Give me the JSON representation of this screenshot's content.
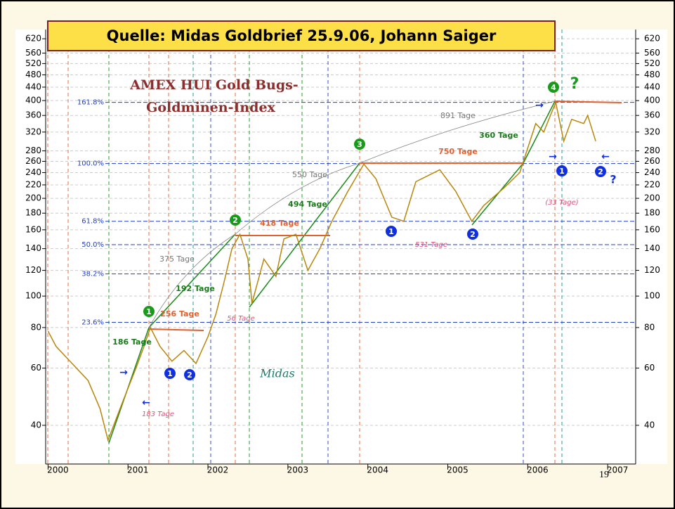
{
  "source": "Quelle: Midas Goldbrief 25.9.06, Johann Saiger",
  "page_number": "19",
  "chart_data": {
    "type": "line",
    "title": [
      "AMEX HUI Gold Bugs-",
      "Goldminen-Index"
    ],
    "watermark": "Midas",
    "log_scale": true,
    "grid": true,
    "xlim": [
      1999.97,
      2007.35
    ],
    "xticks": [
      {
        "value": 2000,
        "label": "2000"
      },
      2001,
      2002,
      2003,
      2004,
      2005,
      2006,
      2007
    ],
    "ylim": [
      30.4,
      662
    ],
    "yticks": [
      40,
      60,
      80,
      100,
      120,
      140,
      160,
      180,
      200,
      220,
      240,
      260,
      280,
      320,
      360,
      400,
      440,
      480,
      520,
      560,
      620
    ],
    "series": [
      {
        "name": "HUI",
        "color": "#b8860b",
        "x": [
          2000.0,
          2000.1,
          2000.3,
          2000.5,
          2000.65,
          2000.75,
          2000.9,
          2001.0,
          2001.1,
          2001.2,
          2001.28,
          2001.4,
          2001.55,
          2001.7,
          2001.85,
          2002.0,
          2002.1,
          2002.2,
          2002.3,
          2002.4,
          2002.5,
          2002.55,
          2002.7,
          2002.85,
          2002.95,
          2003.1,
          2003.25,
          2003.4,
          2003.55,
          2003.75,
          2003.95,
          2004.1,
          2004.3,
          2004.45,
          2004.6,
          2004.9,
          2005.1,
          2005.3,
          2005.45,
          2005.7,
          2005.9,
          2006.1,
          2006.2,
          2006.35,
          2006.45,
          2006.55,
          2006.7,
          2006.75,
          2006.85
        ],
        "values": [
          78,
          70,
          62,
          55,
          45,
          36,
          45,
          52,
          60,
          70,
          80,
          70,
          63,
          68,
          62,
          75,
          88,
          110,
          140,
          155,
          130,
          95,
          130,
          115,
          150,
          155,
          120,
          140,
          170,
          210,
          255,
          230,
          175,
          170,
          225,
          245,
          210,
          170,
          190,
          215,
          240,
          340,
          320,
          395,
          300,
          350,
          340,
          360,
          300
        ]
      }
    ],
    "levels": [
      {
        "label": "161.8%",
        "value": 395
      },
      {
        "label": "100.0%",
        "value": 256
      },
      {
        "label": "61.8%",
        "value": 170
      },
      {
        "label": "50.0%",
        "value": 144
      },
      {
        "label": "38.2%",
        "value": 117
      },
      {
        "label": "23.6%",
        "value": 83
      }
    ],
    "annotations": [
      "891 Tage",
      "360 Tage",
      "750 Tage",
      "550 Tage",
      "494 Tage",
      "418 Tage",
      "375 Tage",
      "192 Tage",
      "256 Tage",
      "186 Tage",
      "56 Tage",
      "531 Tage",
      "(33 Tage)",
      "183 Tage"
    ],
    "markers": [
      "1",
      "2",
      "3",
      "4",
      "1",
      "2",
      "1",
      "2",
      "1",
      "2"
    ],
    "questions": [
      "?",
      "?"
    ]
  }
}
